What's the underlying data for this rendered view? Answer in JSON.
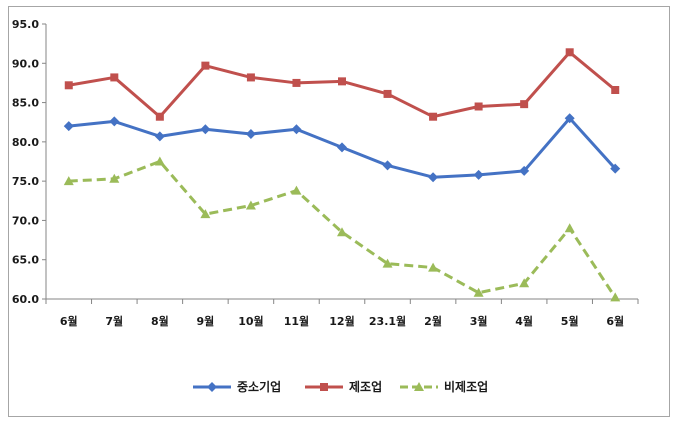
{
  "chart_data": {
    "type": "line",
    "categories": [
      "6월",
      "7월",
      "8월",
      "9월",
      "10월",
      "11월",
      "12월",
      "23.1월",
      "2월",
      "3월",
      "4월",
      "5월",
      "6월"
    ],
    "y_ticks": [
      "60.0",
      "65.0",
      "70.0",
      "75.0",
      "80.0",
      "85.0",
      "90.0",
      "95.0"
    ],
    "ylim": [
      60,
      95
    ],
    "grid": false,
    "legend_position": "bottom",
    "series": [
      {
        "name": "중소기업",
        "color": "#4472c4",
        "marker": "diamond",
        "line_style": "solid",
        "values": [
          82.0,
          82.6,
          80.7,
          81.6,
          81.0,
          81.6,
          79.3,
          77.0,
          75.5,
          75.8,
          76.3,
          83.0,
          76.6
        ]
      },
      {
        "name": "제조업",
        "color": "#c0504d",
        "marker": "square",
        "line_style": "solid",
        "values": [
          87.2,
          88.2,
          83.2,
          89.7,
          88.2,
          87.5,
          87.7,
          86.1,
          83.2,
          84.5,
          84.8,
          91.4,
          86.6
        ]
      },
      {
        "name": "비제조업",
        "color": "#9bbb59",
        "marker": "triangle",
        "line_style": "dashed",
        "values": [
          75.0,
          75.3,
          77.5,
          70.8,
          71.9,
          73.8,
          68.5,
          64.5,
          64.0,
          60.8,
          62.0,
          69.0,
          60.2
        ]
      }
    ]
  }
}
